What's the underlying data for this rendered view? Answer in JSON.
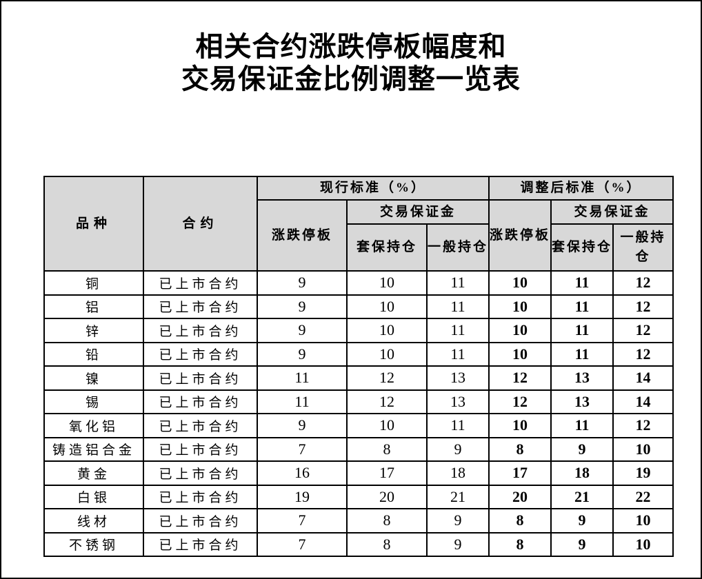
{
  "title": {
    "line1": "相关合约涨跌停板幅度和",
    "line2": "交易保证金比例调整一览表"
  },
  "table": {
    "header": {
      "product": "品种",
      "contract": "合约",
      "current_group": "现行标准（%）",
      "adjusted_group": "调整后标准（%）",
      "price_limit": "涨跌停板",
      "margin_group": "交易保证金",
      "hedge_position": "套保持仓",
      "general_position": "一般持仓"
    },
    "rows": [
      {
        "product": "铜",
        "contract": "已上市合约",
        "current": [
          9,
          10,
          11
        ],
        "adjusted": [
          10,
          11,
          12
        ]
      },
      {
        "product": "铝",
        "contract": "已上市合约",
        "current": [
          9,
          10,
          11
        ],
        "adjusted": [
          10,
          11,
          12
        ]
      },
      {
        "product": "锌",
        "contract": "已上市合约",
        "current": [
          9,
          10,
          11
        ],
        "adjusted": [
          10,
          11,
          12
        ]
      },
      {
        "product": "铅",
        "contract": "已上市合约",
        "current": [
          9,
          10,
          11
        ],
        "adjusted": [
          10,
          11,
          12
        ]
      },
      {
        "product": "镍",
        "contract": "已上市合约",
        "current": [
          11,
          12,
          13
        ],
        "adjusted": [
          12,
          13,
          14
        ]
      },
      {
        "product": "锡",
        "contract": "已上市合约",
        "current": [
          11,
          12,
          13
        ],
        "adjusted": [
          12,
          13,
          14
        ]
      },
      {
        "product": "氧化铝",
        "contract": "已上市合约",
        "current": [
          9,
          10,
          11
        ],
        "adjusted": [
          10,
          11,
          12
        ]
      },
      {
        "product": "铸造铝合金",
        "contract": "已上市合约",
        "current": [
          7,
          8,
          9
        ],
        "adjusted": [
          8,
          9,
          10
        ]
      },
      {
        "product": "黄金",
        "contract": "已上市合约",
        "current": [
          16,
          17,
          18
        ],
        "adjusted": [
          17,
          18,
          19
        ]
      },
      {
        "product": "白银",
        "contract": "已上市合约",
        "current": [
          19,
          20,
          21
        ],
        "adjusted": [
          20,
          21,
          22
        ]
      },
      {
        "product": "线材",
        "contract": "已上市合约",
        "current": [
          7,
          8,
          9
        ],
        "adjusted": [
          8,
          9,
          10
        ]
      },
      {
        "product": "不锈钢",
        "contract": "已上市合约",
        "current": [
          7,
          8,
          9
        ],
        "adjusted": [
          8,
          9,
          10
        ]
      }
    ]
  },
  "colors": {
    "header_background": "#d8d8d8",
    "border": "#000000",
    "text": "#000000",
    "page_background": "#ffffff"
  }
}
